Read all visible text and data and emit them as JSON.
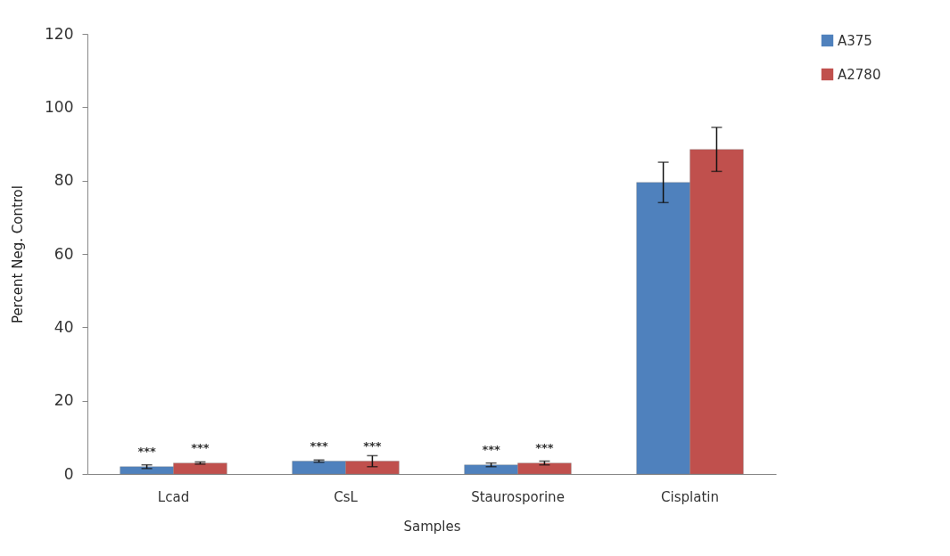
{
  "chart_data": {
    "type": "bar",
    "xlabel": "Samples",
    "ylabel": "Percent Neg. Control",
    "categories": [
      "Lcad",
      "CsL",
      "Staurosporine",
      "Cisplatin"
    ],
    "series": [
      {
        "name": "A375",
        "color": "#4f81bd",
        "values": [
          2,
          3.5,
          2.5,
          79.5
        ],
        "errors": [
          0.5,
          0.3,
          0.5,
          5.5
        ]
      },
      {
        "name": "A2780",
        "color": "#c0504d",
        "values": [
          3,
          3.5,
          3,
          88.5
        ],
        "errors": [
          0.3,
          1.5,
          0.5,
          6
        ]
      }
    ],
    "ylim": [
      0,
      120
    ],
    "yticks": [
      0,
      20,
      40,
      60,
      80,
      100,
      120
    ],
    "grid": false,
    "legend": "right",
    "annotations": [
      {
        "text": "***",
        "x": "Lcad",
        "y": 2
      },
      {
        "text": "***",
        "x": "Lcad",
        "y": 3
      },
      {
        "text": "***",
        "x": "CsL",
        "y": 3.5
      },
      {
        "text": "***",
        "x": "CsL",
        "y": 3.5
      },
      {
        "text": "***",
        "x": "Staurosporine",
        "y": 2.5
      },
      {
        "text": "***",
        "x": "Staurosporine",
        "y": 3
      }
    ]
  }
}
